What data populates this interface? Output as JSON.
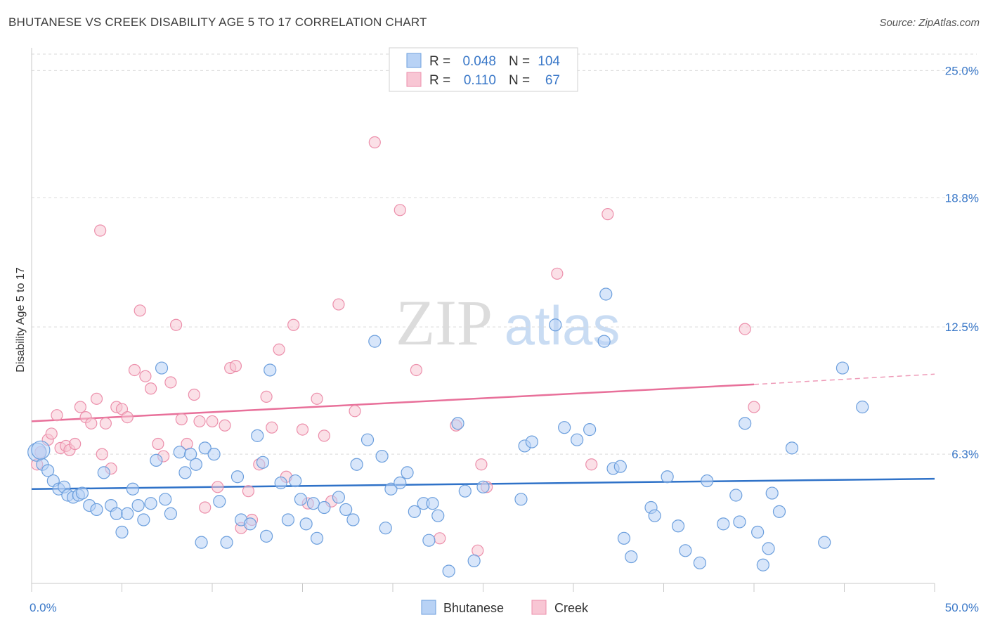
{
  "title": "BHUTANESE VS CREEK DISABILITY AGE 5 TO 17 CORRELATION CHART",
  "source": "Source: ZipAtlas.com",
  "watermark": {
    "zip": "ZIP",
    "atlas": "atlas"
  },
  "colors": {
    "bhutanese_fill": "#b8d2f5",
    "bhutanese_stroke": "#6c9fdd",
    "bhutanese_line": "#2f72c8",
    "creek_fill": "#f8c6d4",
    "creek_stroke": "#ec8fab",
    "creek_line": "#e8709a",
    "axis_text": "#3a78c8",
    "grid": "#d9d9d9"
  },
  "legend": {
    "rows": [
      {
        "r_label": "R =",
        "r_value": "0.048",
        "n_label": "N =",
        "n_value": "104"
      },
      {
        "r_label": "R =",
        "r_value": "0.110",
        "n_label": "N =",
        "n_value": "67"
      }
    ]
  },
  "chart_data": {
    "type": "scatter",
    "title": "BHUTANESE VS CREEK DISABILITY AGE 5 TO 17 CORRELATION CHART",
    "xlabel": "",
    "ylabel": "Disability Age 5 to 17",
    "xlim": [
      0,
      50
    ],
    "ylim": [
      0,
      25.8
    ],
    "x_tick_labels": [
      "0.0%",
      "50.0%"
    ],
    "y_ticks": [
      6.3,
      12.5,
      18.8,
      25.0
    ],
    "y_tick_labels": [
      "6.3%",
      "12.5%",
      "18.8%",
      "25.0%"
    ],
    "grid": "horizontal dashed",
    "legend_position": "bottom-center",
    "series": [
      {
        "name": "Bhutanese",
        "trend": {
          "x": [
            0,
            50
          ],
          "y": [
            4.6,
            5.1
          ]
        },
        "points": [
          [
            0.3,
            6.4
          ],
          [
            0.6,
            5.8
          ],
          [
            0.9,
            5.5
          ],
          [
            1.2,
            5.0
          ],
          [
            1.5,
            4.6
          ],
          [
            1.8,
            4.7
          ],
          [
            2.0,
            4.3
          ],
          [
            2.3,
            4.2
          ],
          [
            2.6,
            4.3
          ],
          [
            2.8,
            4.4
          ],
          [
            3.2,
            3.8
          ],
          [
            3.6,
            3.6
          ],
          [
            4.0,
            5.4
          ],
          [
            4.4,
            3.8
          ],
          [
            4.7,
            3.4
          ],
          [
            5.0,
            2.5
          ],
          [
            5.3,
            3.4
          ],
          [
            5.6,
            4.6
          ],
          [
            5.9,
            3.8
          ],
          [
            6.2,
            3.1
          ],
          [
            6.6,
            3.9
          ],
          [
            6.9,
            6.0
          ],
          [
            7.2,
            10.5
          ],
          [
            7.4,
            4.1
          ],
          [
            7.7,
            3.4
          ],
          [
            8.2,
            6.4
          ],
          [
            8.5,
            5.4
          ],
          [
            8.8,
            6.3
          ],
          [
            9.1,
            5.8
          ],
          [
            9.4,
            2.0
          ],
          [
            9.6,
            6.6
          ],
          [
            10.1,
            6.3
          ],
          [
            10.4,
            4.0
          ],
          [
            10.8,
            2.0
          ],
          [
            11.4,
            5.2
          ],
          [
            11.6,
            3.1
          ],
          [
            12.1,
            2.9
          ],
          [
            12.5,
            7.2
          ],
          [
            12.8,
            5.9
          ],
          [
            13.0,
            2.3
          ],
          [
            13.2,
            10.4
          ],
          [
            13.8,
            4.9
          ],
          [
            14.2,
            3.1
          ],
          [
            14.6,
            5.0
          ],
          [
            14.9,
            4.1
          ],
          [
            15.2,
            2.9
          ],
          [
            15.6,
            3.9
          ],
          [
            15.8,
            2.2
          ],
          [
            16.2,
            3.7
          ],
          [
            17.0,
            4.2
          ],
          [
            17.4,
            3.6
          ],
          [
            17.8,
            3.1
          ],
          [
            18.0,
            5.8
          ],
          [
            18.6,
            7.0
          ],
          [
            19.0,
            11.8
          ],
          [
            19.4,
            6.2
          ],
          [
            19.6,
            2.7
          ],
          [
            19.9,
            4.6
          ],
          [
            20.4,
            4.9
          ],
          [
            20.8,
            5.4
          ],
          [
            21.2,
            3.5
          ],
          [
            21.7,
            3.9
          ],
          [
            22.0,
            2.1
          ],
          [
            22.2,
            3.9
          ],
          [
            22.5,
            3.3
          ],
          [
            23.1,
            0.6
          ],
          [
            23.6,
            7.8
          ],
          [
            24.0,
            4.5
          ],
          [
            24.5,
            1.1
          ],
          [
            25.0,
            4.7
          ],
          [
            27.1,
            4.1
          ],
          [
            27.3,
            6.7
          ],
          [
            27.7,
            6.9
          ],
          [
            29.0,
            12.6
          ],
          [
            29.5,
            7.6
          ],
          [
            30.2,
            7.0
          ],
          [
            30.9,
            7.5
          ],
          [
            31.7,
            11.8
          ],
          [
            31.8,
            14.1
          ],
          [
            32.2,
            5.6
          ],
          [
            32.6,
            5.7
          ],
          [
            32.8,
            2.2
          ],
          [
            33.2,
            1.3
          ],
          [
            34.3,
            3.7
          ],
          [
            34.5,
            3.3
          ],
          [
            35.2,
            5.2
          ],
          [
            35.8,
            2.8
          ],
          [
            36.2,
            1.6
          ],
          [
            37.0,
            1.0
          ],
          [
            37.4,
            5.0
          ],
          [
            38.3,
            2.9
          ],
          [
            39.0,
            4.3
          ],
          [
            39.2,
            3.0
          ],
          [
            39.5,
            7.8
          ],
          [
            40.2,
            2.5
          ],
          [
            40.5,
            0.9
          ],
          [
            40.8,
            1.7
          ],
          [
            41.0,
            4.4
          ],
          [
            41.4,
            3.5
          ],
          [
            42.1,
            6.6
          ],
          [
            43.9,
            2.0
          ],
          [
            44.9,
            10.5
          ],
          [
            46.0,
            8.6
          ],
          [
            0.5,
            6.5
          ]
        ]
      },
      {
        "name": "Creek",
        "trend": {
          "x": [
            0,
            40
          ],
          "y": [
            7.9,
            9.7
          ]
        },
        "trend_dashed": {
          "x": [
            40,
            50
          ],
          "y": [
            9.7,
            10.2
          ]
        },
        "points": [
          [
            0.3,
            5.8
          ],
          [
            0.5,
            6.4
          ],
          [
            0.9,
            7.0
          ],
          [
            1.1,
            7.3
          ],
          [
            1.4,
            8.2
          ],
          [
            1.6,
            6.6
          ],
          [
            1.9,
            6.7
          ],
          [
            2.1,
            6.5
          ],
          [
            2.4,
            6.8
          ],
          [
            2.7,
            8.6
          ],
          [
            3.0,
            8.1
          ],
          [
            3.3,
            7.8
          ],
          [
            3.6,
            9.0
          ],
          [
            3.9,
            6.3
          ],
          [
            4.1,
            7.8
          ],
          [
            4.4,
            5.6
          ],
          [
            4.7,
            8.6
          ],
          [
            5.0,
            8.5
          ],
          [
            5.3,
            8.1
          ],
          [
            5.7,
            10.4
          ],
          [
            6.0,
            13.3
          ],
          [
            6.3,
            10.1
          ],
          [
            6.6,
            9.5
          ],
          [
            7.0,
            6.8
          ],
          [
            7.3,
            6.2
          ],
          [
            7.7,
            9.8
          ],
          [
            8.0,
            12.6
          ],
          [
            8.3,
            8.0
          ],
          [
            8.6,
            6.8
          ],
          [
            9.0,
            9.2
          ],
          [
            9.3,
            7.9
          ],
          [
            9.6,
            3.7
          ],
          [
            10.0,
            7.9
          ],
          [
            10.3,
            4.7
          ],
          [
            10.7,
            7.7
          ],
          [
            11.0,
            10.5
          ],
          [
            11.3,
            10.6
          ],
          [
            11.6,
            2.7
          ],
          [
            12.0,
            4.5
          ],
          [
            12.2,
            3.1
          ],
          [
            12.6,
            5.8
          ],
          [
            13.0,
            9.1
          ],
          [
            13.3,
            7.6
          ],
          [
            13.7,
            11.4
          ],
          [
            14.1,
            5.2
          ],
          [
            14.5,
            12.6
          ],
          [
            15.0,
            7.5
          ],
          [
            15.3,
            3.9
          ],
          [
            15.8,
            9.0
          ],
          [
            16.2,
            7.2
          ],
          [
            16.6,
            4.0
          ],
          [
            17.0,
            13.6
          ],
          [
            17.9,
            8.4
          ],
          [
            19.0,
            21.5
          ],
          [
            20.4,
            18.2
          ],
          [
            21.3,
            10.4
          ],
          [
            22.6,
            2.2
          ],
          [
            23.5,
            7.7
          ],
          [
            24.7,
            1.6
          ],
          [
            24.9,
            5.8
          ],
          [
            25.2,
            4.7
          ],
          [
            29.1,
            15.1
          ],
          [
            31.0,
            5.8
          ],
          [
            31.9,
            18.0
          ],
          [
            39.5,
            12.4
          ],
          [
            40.0,
            8.6
          ],
          [
            3.8,
            17.2
          ]
        ]
      }
    ]
  }
}
